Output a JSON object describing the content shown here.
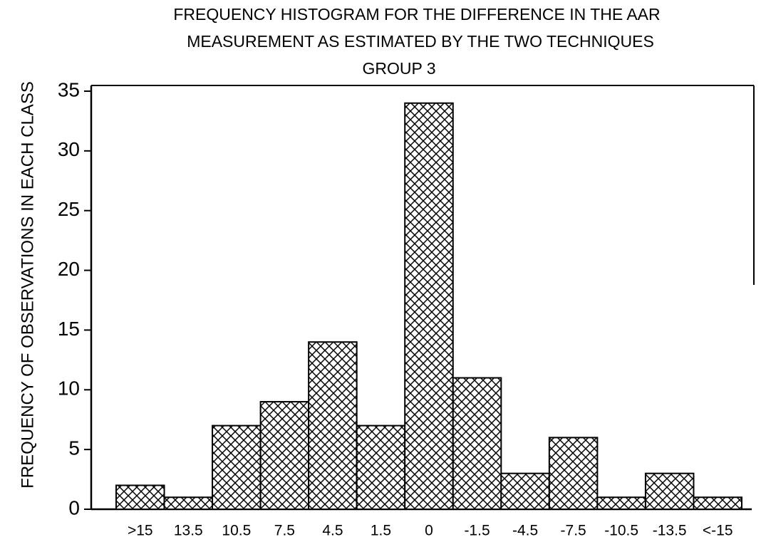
{
  "chart_data": {
    "type": "bar",
    "title": [
      "FREQUENCY HISTOGRAM FOR THE DIFFERENCE  IN THE AAR",
      "MEASUREMENT AS ESTIMATED BY THE TWO TECHNIQUES",
      "GROUP 3"
    ],
    "y_label": "FREQUENCY OF OBSERVATIONS IN EACH CLASS",
    "categories": [
      ">15",
      "13.5",
      "10.5",
      "7.5",
      "4.5",
      "1.5",
      "0",
      "-1.5",
      "-4.5",
      "-7.5",
      "-10.5",
      "-13.5",
      "<-15"
    ],
    "values": [
      2,
      1,
      7,
      9,
      14,
      7,
      34,
      11,
      3,
      6,
      1,
      3,
      1
    ],
    "color": "#000000",
    "ylim": [
      0,
      35
    ],
    "yticks": [
      0,
      5,
      10,
      15,
      20,
      25,
      30,
      35
    ],
    "grid": false
  }
}
